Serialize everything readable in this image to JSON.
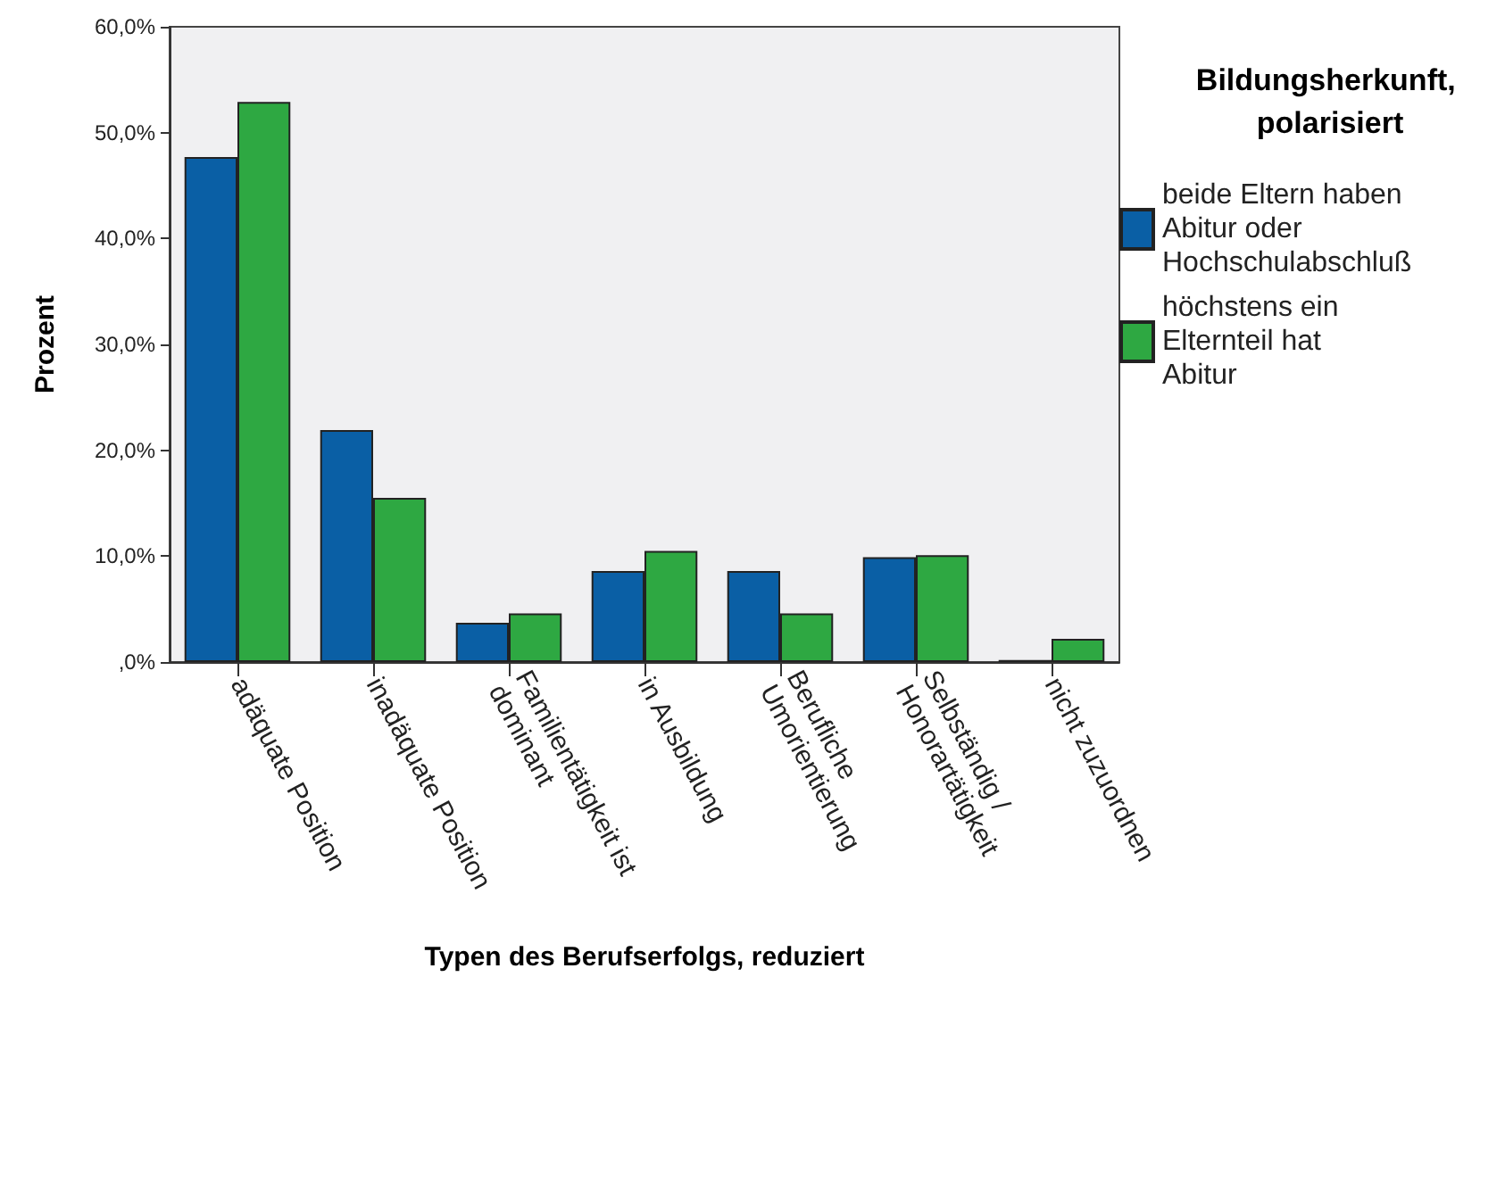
{
  "chart_data": {
    "type": "bar",
    "xlabel": "Typen des Berufserfolgs, reduziert",
    "ylabel": "Prozent",
    "legend_title": "Bildungsherkunft, polarisiert",
    "categories": [
      "adäquate Position",
      "inadäquate Position",
      "Familientätigkeit ist dominant",
      "in Ausbildung",
      "Berufliche Umorientierung",
      "Selbständig / Honorartätigkeit",
      "nicht zuzuordnen"
    ],
    "series": [
      {
        "name": "beide Eltern haben Abitur oder Hochschulabschluß",
        "color": "#0a5fa5",
        "values": [
          47.7,
          21.9,
          3.7,
          8.6,
          8.6,
          9.9,
          0.2
        ]
      },
      {
        "name": "höchstens ein Elternteil hat Abitur",
        "color": "#2ea842",
        "values": [
          52.9,
          15.5,
          4.6,
          10.5,
          4.6,
          10.1,
          2.2
        ]
      }
    ],
    "ylim": [
      0,
      60
    ],
    "yticks": [
      {
        "value": 0,
        "label": ",0%"
      },
      {
        "value": 10,
        "label": "10,0%"
      },
      {
        "value": 20,
        "label": "20,0%"
      },
      {
        "value": 30,
        "label": "30,0%"
      },
      {
        "value": 40,
        "label": "40,0%"
      },
      {
        "value": 50,
        "label": "50,0%"
      },
      {
        "value": 60,
        "label": "60,0%"
      }
    ],
    "grid": false,
    "legend": "right"
  }
}
